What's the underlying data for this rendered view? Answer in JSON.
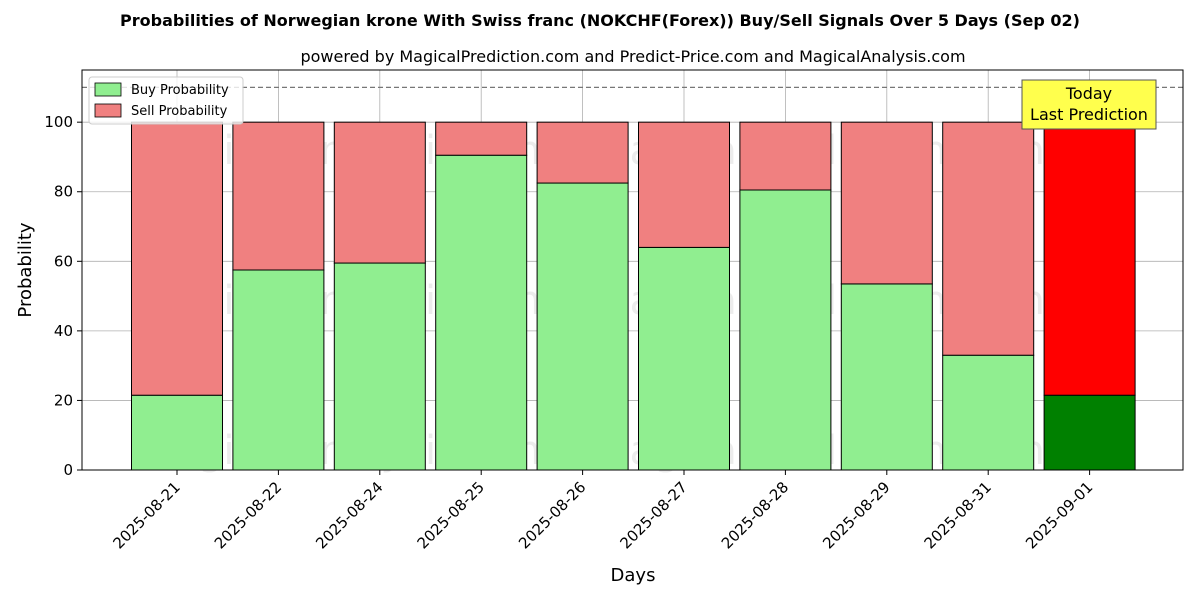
{
  "chart_data": {
    "type": "bar",
    "stacked": true,
    "title": "Probabilities of Norwegian krone With Swiss franc (NOKCHF(Forex)) Buy/Sell Signals Over 5 Days (Sep 02)",
    "subtitle": "powered by MagicalPrediction.com and Predict-Price.com and MagicalAnalysis.com",
    "xlabel": "Days",
    "ylabel": "Probability",
    "ylim": [
      0,
      115
    ],
    "yticks": [
      0,
      20,
      40,
      60,
      80,
      100
    ],
    "grid": true,
    "reference_line": 110,
    "categories": [
      "2025-08-21",
      "2025-08-22",
      "2025-08-24",
      "2025-08-25",
      "2025-08-26",
      "2025-08-27",
      "2025-08-28",
      "2025-08-29",
      "2025-08-31",
      "2025-09-01"
    ],
    "series": [
      {
        "name": "Buy Probability",
        "values": [
          21.5,
          57.5,
          59.5,
          90.5,
          82.5,
          64.0,
          80.5,
          53.5,
          33.0,
          21.5
        ]
      },
      {
        "name": "Sell Probability",
        "values": [
          78.5,
          42.5,
          40.5,
          9.5,
          17.5,
          36.0,
          19.5,
          46.5,
          67.0,
          78.5
        ]
      }
    ],
    "legend_position": "top-left",
    "colors": {
      "buy": "#90ee90",
      "sell": "#f08080",
      "buy_highlight": "#008000",
      "sell_highlight": "#ff0000",
      "annotation_bg": "#ffff4d"
    },
    "annotation": {
      "line1": "Today",
      "line2": "Last Prediction",
      "category": "2025-09-01"
    },
    "watermarks": [
      "MagicalAnalysis.com",
      "MagicalPrediction.com"
    ]
  }
}
